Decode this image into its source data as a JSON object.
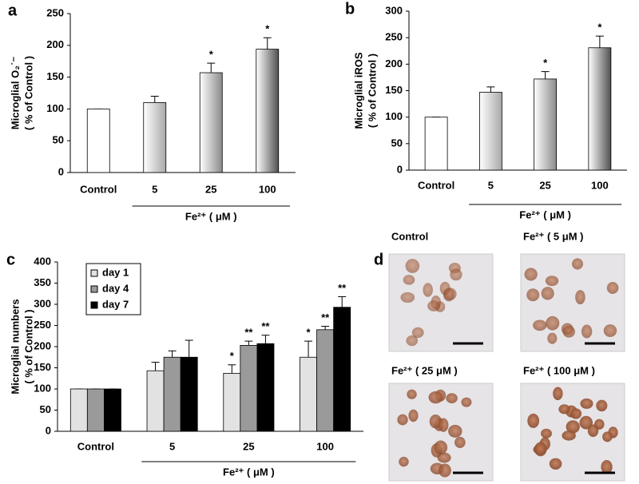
{
  "chart_data": [
    {
      "type": "bar",
      "panel": "a",
      "ylabel": [
        "Microglial O₂˙⁻",
        "( % of Control )"
      ],
      "categories": [
        "Control",
        "5",
        "25",
        "100"
      ],
      "xgroup_label": "Fe²⁺ ( μM )",
      "values": [
        100,
        110,
        157,
        194
      ],
      "errors": [
        0,
        10,
        15,
        18
      ],
      "annotations": [
        null,
        null,
        "*",
        "*"
      ],
      "colors": [
        "#ffffff",
        "#a8a8a8",
        "#8a8a8a",
        "#505050"
      ],
      "ylim": [
        0,
        250
      ],
      "yticks": [
        0,
        50,
        100,
        150,
        200,
        250
      ]
    },
    {
      "type": "bar",
      "panel": "b",
      "ylabel": [
        "Microglial iROS",
        "( % of Control )"
      ],
      "categories": [
        "Control",
        "5",
        "25",
        "100"
      ],
      "xgroup_label": "Fe²⁺ ( μM )",
      "values": [
        100,
        147,
        172,
        231
      ],
      "errors": [
        0,
        10,
        14,
        22
      ],
      "annotations": [
        null,
        null,
        "*",
        "*"
      ],
      "colors": [
        "#ffffff",
        "#a8a8a8",
        "#8a8a8a",
        "#505050"
      ],
      "ylim": [
        0,
        300
      ],
      "yticks": [
        0,
        50,
        100,
        150,
        200,
        250,
        300
      ]
    },
    {
      "type": "bar",
      "panel": "c",
      "ylabel": [
        "Microglial numbers",
        "( % of Control )"
      ],
      "categories": [
        "Control",
        "5",
        "25",
        "100"
      ],
      "xgroup_label": "Fe²⁺ ( μM )",
      "series": [
        {
          "name": "day 1",
          "color": "#e2e2e2",
          "values": [
            100,
            143,
            137,
            175
          ],
          "errors": [
            0,
            20,
            20,
            38
          ],
          "annotations": [
            null,
            null,
            "*",
            "*"
          ]
        },
        {
          "name": "day 4",
          "color": "#9a9a9a",
          "values": [
            100,
            175,
            203,
            240
          ],
          "errors": [
            0,
            15,
            10,
            8
          ],
          "annotations": [
            null,
            null,
            "**",
            "**"
          ]
        },
        {
          "name": "day 7",
          "color": "#000000",
          "values": [
            100,
            175,
            207,
            293
          ],
          "errors": [
            0,
            40,
            20,
            25
          ],
          "annotations": [
            null,
            null,
            "**",
            "**"
          ]
        }
      ],
      "ylim": [
        0,
        400
      ],
      "yticks": [
        0,
        50,
        100,
        150,
        200,
        250,
        300,
        350,
        400
      ]
    }
  ],
  "panel_d": {
    "label": "d",
    "images": [
      {
        "caption": "Control"
      },
      {
        "caption": "Fe²⁺ ( 5 μM )"
      },
      {
        "caption": "Fe²⁺ ( 25 μM )"
      },
      {
        "caption": "Fe²⁺ ( 100 μM )"
      }
    ]
  }
}
